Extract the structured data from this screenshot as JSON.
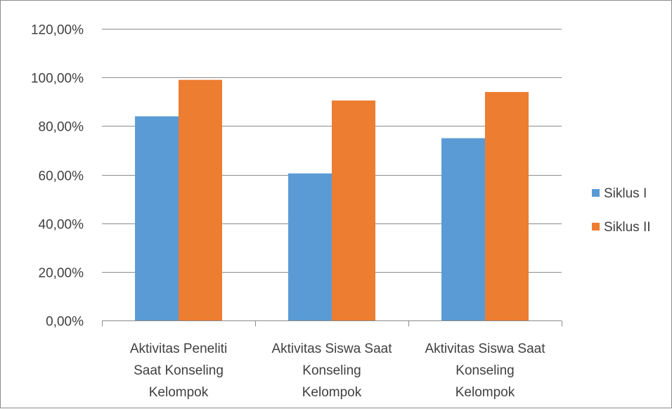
{
  "chart_data": {
    "type": "bar",
    "title": "",
    "xlabel": "",
    "ylabel": "",
    "categories": [
      [
        "Aktivitas Peneliti",
        "Saat Konseling",
        "Kelompok"
      ],
      [
        "Aktivitas Siswa Saat",
        "Konseling",
        "Kelompok"
      ],
      [
        "Aktivitas Siswa Saat",
        "Konseling",
        "Kelompok"
      ]
    ],
    "series": [
      {
        "name": "Siklus I",
        "color": "#5B9BD5",
        "values": [
          84.0,
          60.5,
          75.0
        ]
      },
      {
        "name": "Siklus II",
        "color": "#ED7D31",
        "values": [
          99.0,
          90.5,
          94.0
        ]
      }
    ],
    "ylim": [
      0,
      120
    ],
    "y_ticks": [
      0,
      20,
      40,
      60,
      80,
      100,
      120
    ],
    "y_tick_labels": [
      "0,00%",
      "20,00%",
      "40,00%",
      "60,00%",
      "80,00%",
      "100,00%",
      "120,00%"
    ],
    "grid": true,
    "legend_position": "right"
  }
}
